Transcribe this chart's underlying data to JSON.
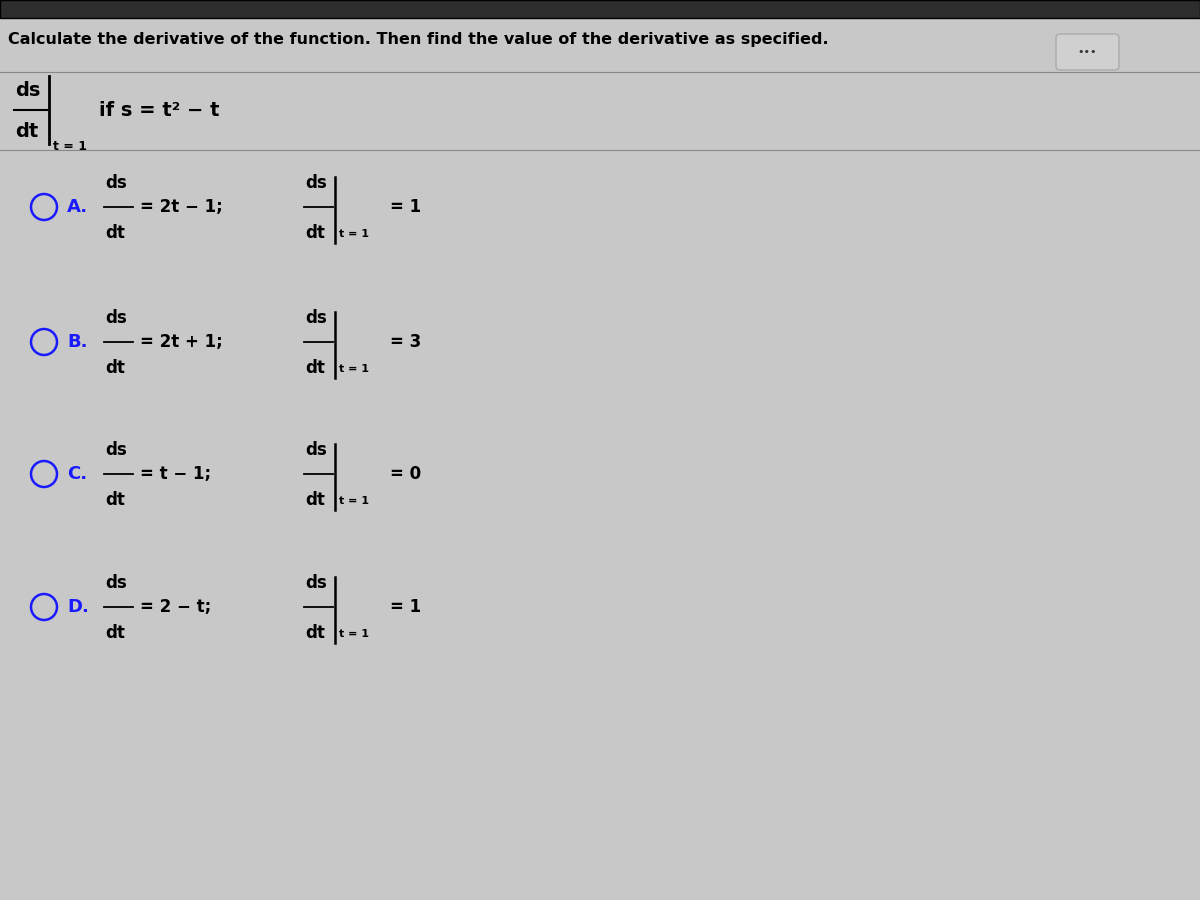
{
  "bg_color": "#c8c8c8",
  "top_bar_color": "#2d2d2d",
  "text_color": "#000000",
  "option_label_color": "#1a1aff",
  "title_text": "Calculate the derivative of the function. Then find the value of the derivative as specified.",
  "problem_condition": "if s = t² − t",
  "options": [
    {
      "label": "A.",
      "deriv_expr": "= 2t − 1;",
      "eval_sub": "t = 1",
      "eval_result": "= 1"
    },
    {
      "label": "B.",
      "deriv_expr": "= 2t + 1;",
      "eval_sub": "t = 1",
      "eval_result": "= 3"
    },
    {
      "label": "C.",
      "deriv_expr": "= t − 1;",
      "eval_sub": "t = 1",
      "eval_result": "= 0"
    },
    {
      "label": "D.",
      "deriv_expr": "= 2 − t;",
      "eval_sub": "t = 1",
      "eval_result": "= 1"
    }
  ],
  "dots_button_color": "#d0d0d0",
  "figsize": [
    12,
    9
  ],
  "dpi": 100
}
